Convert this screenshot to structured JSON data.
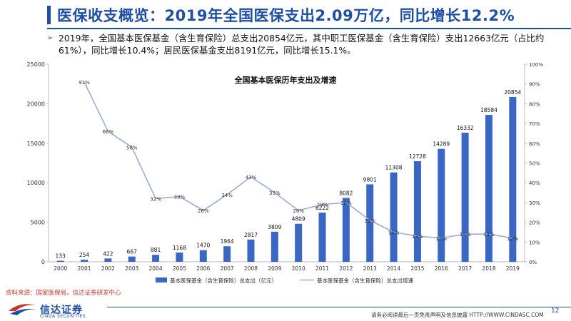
{
  "header": {
    "title": "医保收支概览：2019年全国医保支出2.09万亿，同比增长12.2%"
  },
  "bullet": {
    "text": "2019年，全国基本医保基金（含生育保险）总支出20854亿元，其中职工医保基金（含生育保险）支出12663亿元（占比约61%），同比增长10.4%；居民医保基金支出8191亿元，同比增长15.1%。"
  },
  "chart_data": {
    "type": "bar",
    "title": "全国基本医保历年支出及增速",
    "categories": [
      "2000",
      "2001",
      "2002",
      "2003",
      "2004",
      "2005",
      "2006",
      "2007",
      "2008",
      "2009",
      "2010",
      "2011",
      "2012",
      "2013",
      "2014",
      "2015",
      "2016",
      "2017",
      "2018",
      "2019"
    ],
    "series": [
      {
        "name": "基本医保基金（含生育保险）总支出（亿元）",
        "type": "bar",
        "axis": "left",
        "color": "#3a66c4",
        "values": [
          133,
          254,
          422,
          667,
          881,
          1168,
          1470,
          1964,
          2817,
          3809,
          4809,
          6222,
          8082,
          9801,
          11308,
          12728,
          14289,
          16332,
          18584,
          20854
        ]
      },
      {
        "name": "基本医保基金（含生育保险）总支出增速",
        "type": "line",
        "axis": "right",
        "color": "#9aaed6",
        "values": [
          null,
          91,
          66,
          58,
          32,
          33,
          26,
          34,
          43,
          35,
          26,
          29,
          30,
          21,
          15,
          13,
          12,
          14,
          14,
          12
        ],
        "labels": [
          "",
          "91%",
          "66%",
          "58%",
          "32%",
          "33%",
          "26%",
          "34%",
          "43%",
          "35%",
          "26%",
          "29%",
          "30%",
          "21%",
          "15%",
          "13%",
          "12%",
          "14%",
          "14%",
          "12%"
        ]
      }
    ],
    "y_left": {
      "ylim": [
        0,
        25000
      ],
      "ticks": [
        "0",
        "5000",
        "10000",
        "15000",
        "20000",
        "25000"
      ]
    },
    "y_right": {
      "ylim": [
        0,
        100
      ],
      "ticks": [
        "0%",
        "10%",
        "20%",
        "30%",
        "40%",
        "50%",
        "60%",
        "70%",
        "80%",
        "90%",
        "100%"
      ]
    },
    "grid": false,
    "legend_position": "bottom"
  },
  "footer": {
    "source": "资料来源：国家医保局，信达证券研发中心",
    "logo_cn": "信达证券",
    "logo_en": "CINDA SECURITIES",
    "disclaimer": "请务必阅读最后一页免责声明及信息披露   HTTP://WWW.CINDASC.COM",
    "page": "12"
  }
}
